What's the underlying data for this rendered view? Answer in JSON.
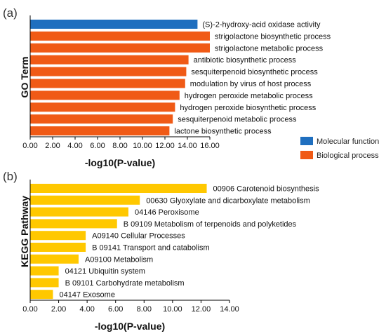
{
  "chart_data": [
    {
      "panel": "(a)",
      "type": "bar",
      "orientation": "horizontal",
      "ylabel": "GO Term",
      "xlabel": "-log10(P-value)",
      "xlim": [
        0,
        16
      ],
      "xticks": [
        "0.00",
        "2.00",
        "4.00",
        "6.00",
        "8.00",
        "10.00",
        "12.00",
        "14.00",
        "16.00"
      ],
      "grid": false,
      "legend": [
        {
          "label": "Molecular function",
          "color": "#1f6fbf"
        },
        {
          "label": "Biological process",
          "color": "#f05a16"
        }
      ],
      "legend_position": "right",
      "categories": [
        "(S)-2-hydroxy-acid oxidase activity",
        "strigolactone biosynthetic process",
        "strigolactone metabolic process",
        "antibiotic biosynthetic process",
        "sesquiterpenoid biosynthetic process",
        "modulation by virus of host process",
        "hydrogen peroxide metabolic process",
        "hydrogen peroxide biosynthetic process",
        "sesquiterpenoid metabolic process",
        "lactone biosynthetic process"
      ],
      "values": [
        14.9,
        16.0,
        16.0,
        14.1,
        13.9,
        13.8,
        13.3,
        12.9,
        12.7,
        12.4
      ],
      "colors": [
        "#1f6fbf",
        "#f05a16",
        "#f05a16",
        "#f05a16",
        "#f05a16",
        "#f05a16",
        "#f05a16",
        "#f05a16",
        "#f05a16",
        "#f05a16"
      ]
    },
    {
      "panel": "(b)",
      "type": "bar",
      "orientation": "horizontal",
      "ylabel": "KEGG Pathway",
      "xlabel": "-log10(P-value)",
      "xlim": [
        0,
        14
      ],
      "xticks": [
        "0.00",
        "2.00",
        "4.00",
        "6.00",
        "8.00",
        "10.00",
        "12.00",
        "14.00"
      ],
      "grid": false,
      "categories": [
        "00906 Carotenoid biosynthesis",
        "00630 Glyoxylate and dicarboxylate metabolism",
        "04146 Peroxisome",
        "B  09109 Metabolism of terpenoids and polyketides",
        "A09140 Cellular Processes",
        "B  09141 Transport and catabolism",
        "A09100 Metabolism",
        "04121 Ubiquitin system",
        "B  09101 Carbohydrate metabolism",
        "04147 Exosome"
      ],
      "values": [
        12.4,
        7.7,
        6.9,
        6.1,
        3.9,
        3.9,
        3.4,
        2.0,
        2.0,
        1.6
      ],
      "colors": [
        "#ffc800",
        "#ffc800",
        "#ffc800",
        "#ffc800",
        "#ffc800",
        "#ffc800",
        "#ffc800",
        "#ffc800",
        "#ffc800",
        "#ffc800"
      ]
    }
  ]
}
